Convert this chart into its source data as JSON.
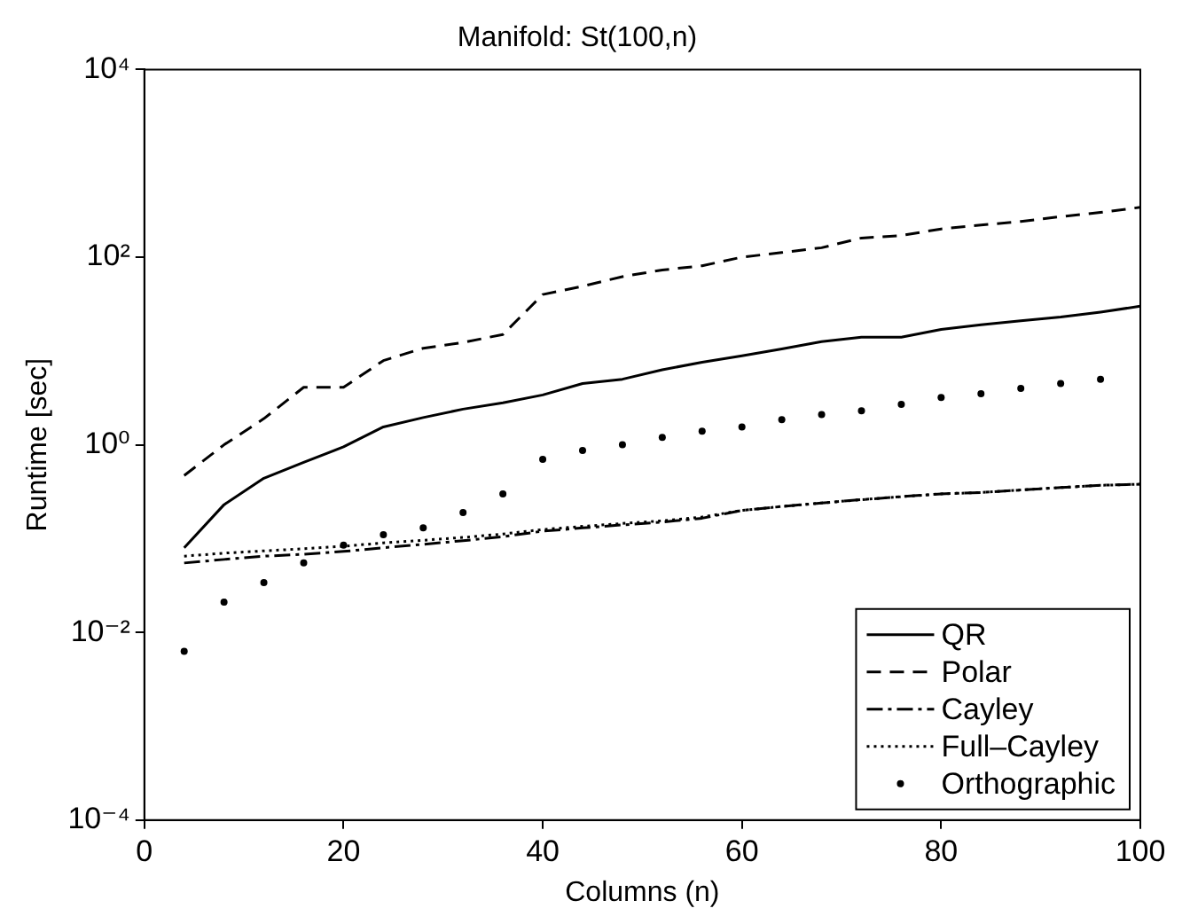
{
  "chart_data": {
    "type": "line",
    "title": "Manifold: St(100,n)",
    "xlabel": "Columns (n)",
    "ylabel": "Runtime [sec]",
    "x": [
      4,
      8,
      12,
      16,
      20,
      24,
      28,
      32,
      36,
      40,
      44,
      48,
      52,
      56,
      60,
      64,
      68,
      72,
      76,
      80,
      84,
      88,
      92,
      96,
      100
    ],
    "series": [
      {
        "name": "QR",
        "color": "#000000",
        "line_style": "solid",
        "values": [
          0.08,
          0.23,
          0.44,
          0.65,
          0.95,
          1.55,
          1.95,
          2.4,
          2.8,
          3.4,
          4.5,
          5,
          6.3,
          7.6,
          8.9,
          10.5,
          12.6,
          14,
          14,
          17,
          19,
          21,
          23,
          26,
          30
        ]
      },
      {
        "name": "Polar",
        "color": "#000000",
        "line_style": "dashed",
        "values": [
          0.47,
          1.0,
          1.9,
          4.1,
          4.1,
          7.9,
          10.7,
          12.3,
          15,
          40,
          49,
          62,
          73,
          81,
          100,
          112,
          126,
          160,
          170,
          200,
          220,
          240,
          270,
          300,
          340
        ]
      },
      {
        "name": "Cayley",
        "color": "#000000",
        "line_style": "dashdot",
        "values": [
          0.055,
          0.06,
          0.065,
          0.068,
          0.073,
          0.08,
          0.087,
          0.095,
          0.105,
          0.12,
          0.13,
          0.14,
          0.15,
          0.165,
          0.2,
          0.22,
          0.24,
          0.26,
          0.28,
          0.3,
          0.31,
          0.33,
          0.35,
          0.37,
          0.38
        ]
      },
      {
        "name": "Full–Cayley",
        "color": "#000000",
        "line_style": "dotted",
        "values": [
          0.065,
          0.07,
          0.074,
          0.078,
          0.083,
          0.09,
          0.096,
          0.103,
          0.112,
          0.125,
          0.135,
          0.145,
          0.155,
          0.17,
          0.2,
          0.22,
          0.24,
          0.26,
          0.28,
          0.3,
          0.31,
          0.33,
          0.35,
          0.37,
          0.38
        ]
      },
      {
        "name": "Orthographic",
        "color": "#000000",
        "type": "scatter",
        "marker": "circle",
        "values": [
          0.0063,
          0.021,
          0.034,
          0.055,
          0.085,
          0.11,
          0.13,
          0.19,
          0.3,
          0.7,
          0.87,
          1.0,
          1.2,
          1.4,
          1.55,
          1.85,
          2.1,
          2.3,
          2.7,
          3.2,
          3.5,
          4,
          4.5,
          5,
          null
        ]
      }
    ],
    "log": "y",
    "xlim": [
      0,
      100
    ],
    "xticks": [
      0,
      20,
      40,
      60,
      80,
      100
    ],
    "ylim": [
      0.0001,
      10000
    ],
    "yticks": [
      {
        "value": 0.0001,
        "label": "10⁻⁴"
      },
      {
        "value": 0.01,
        "label": "10⁻²"
      },
      {
        "value": 1,
        "label": "10⁰"
      },
      {
        "value": 100,
        "label": "10²"
      },
      {
        "value": 10000,
        "label": "10⁴"
      }
    ],
    "grid": false,
    "legend": "bottom right"
  }
}
